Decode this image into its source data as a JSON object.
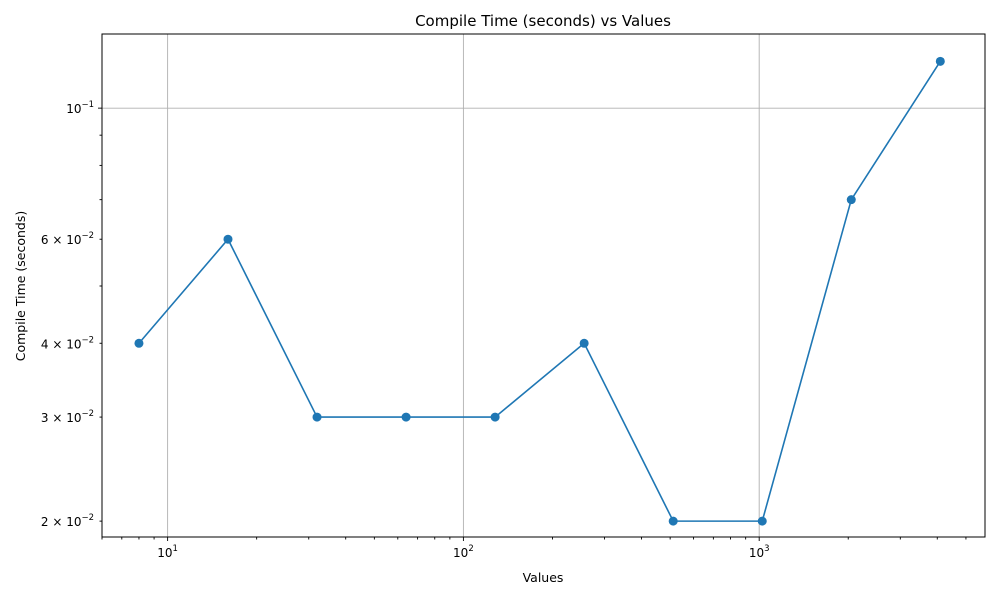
{
  "chart_data": {
    "type": "line",
    "title": "Compile Time (seconds) vs Values",
    "xlabel": "Values",
    "ylabel": "Compile Time (seconds)",
    "x_scale": "log",
    "y_scale": "log",
    "xlim": [
      6,
      5800
    ],
    "ylim": [
      0.0188,
      0.1335
    ],
    "grid": "major ticks only",
    "legend": "none",
    "series": [
      {
        "color": "#1f77b4",
        "marker": "circle",
        "x": [
          8,
          16,
          32,
          64,
          128,
          256,
          512,
          1024,
          2048,
          4096
        ],
        "y": [
          0.04,
          0.06,
          0.03,
          0.03,
          0.03,
          0.04,
          0.02,
          0.02,
          0.07,
          0.12
        ]
      }
    ],
    "x_major_ticks": [
      {
        "value": 10,
        "base": "10",
        "exp": "1"
      },
      {
        "value": 100,
        "base": "10",
        "exp": "2"
      },
      {
        "value": 1000,
        "base": "10",
        "exp": "3"
      }
    ],
    "x_minor_ticks": [
      6,
      7,
      8,
      9,
      20,
      30,
      40,
      50,
      60,
      70,
      80,
      90,
      200,
      300,
      400,
      500,
      600,
      700,
      800,
      900,
      2000,
      3000,
      4000,
      5000
    ],
    "y_major_ticks": [
      {
        "value": 0.1,
        "base": "10",
        "exp": "−1"
      }
    ],
    "y_minor_ticks": [
      {
        "value": 0.02,
        "label": "2 × 10",
        "exp": "−2"
      },
      {
        "value": 0.03,
        "label": "3 × 10",
        "exp": "−2"
      },
      {
        "value": 0.04,
        "label": "4 × 10",
        "exp": "−2"
      },
      {
        "value": 0.06,
        "label": "6 × 10",
        "exp": "−2"
      },
      {
        "value": 0.05,
        "label": "",
        "exp": ""
      },
      {
        "value": 0.07,
        "label": "",
        "exp": ""
      },
      {
        "value": 0.08,
        "label": "",
        "exp": ""
      },
      {
        "value": 0.09,
        "label": "",
        "exp": ""
      }
    ]
  }
}
